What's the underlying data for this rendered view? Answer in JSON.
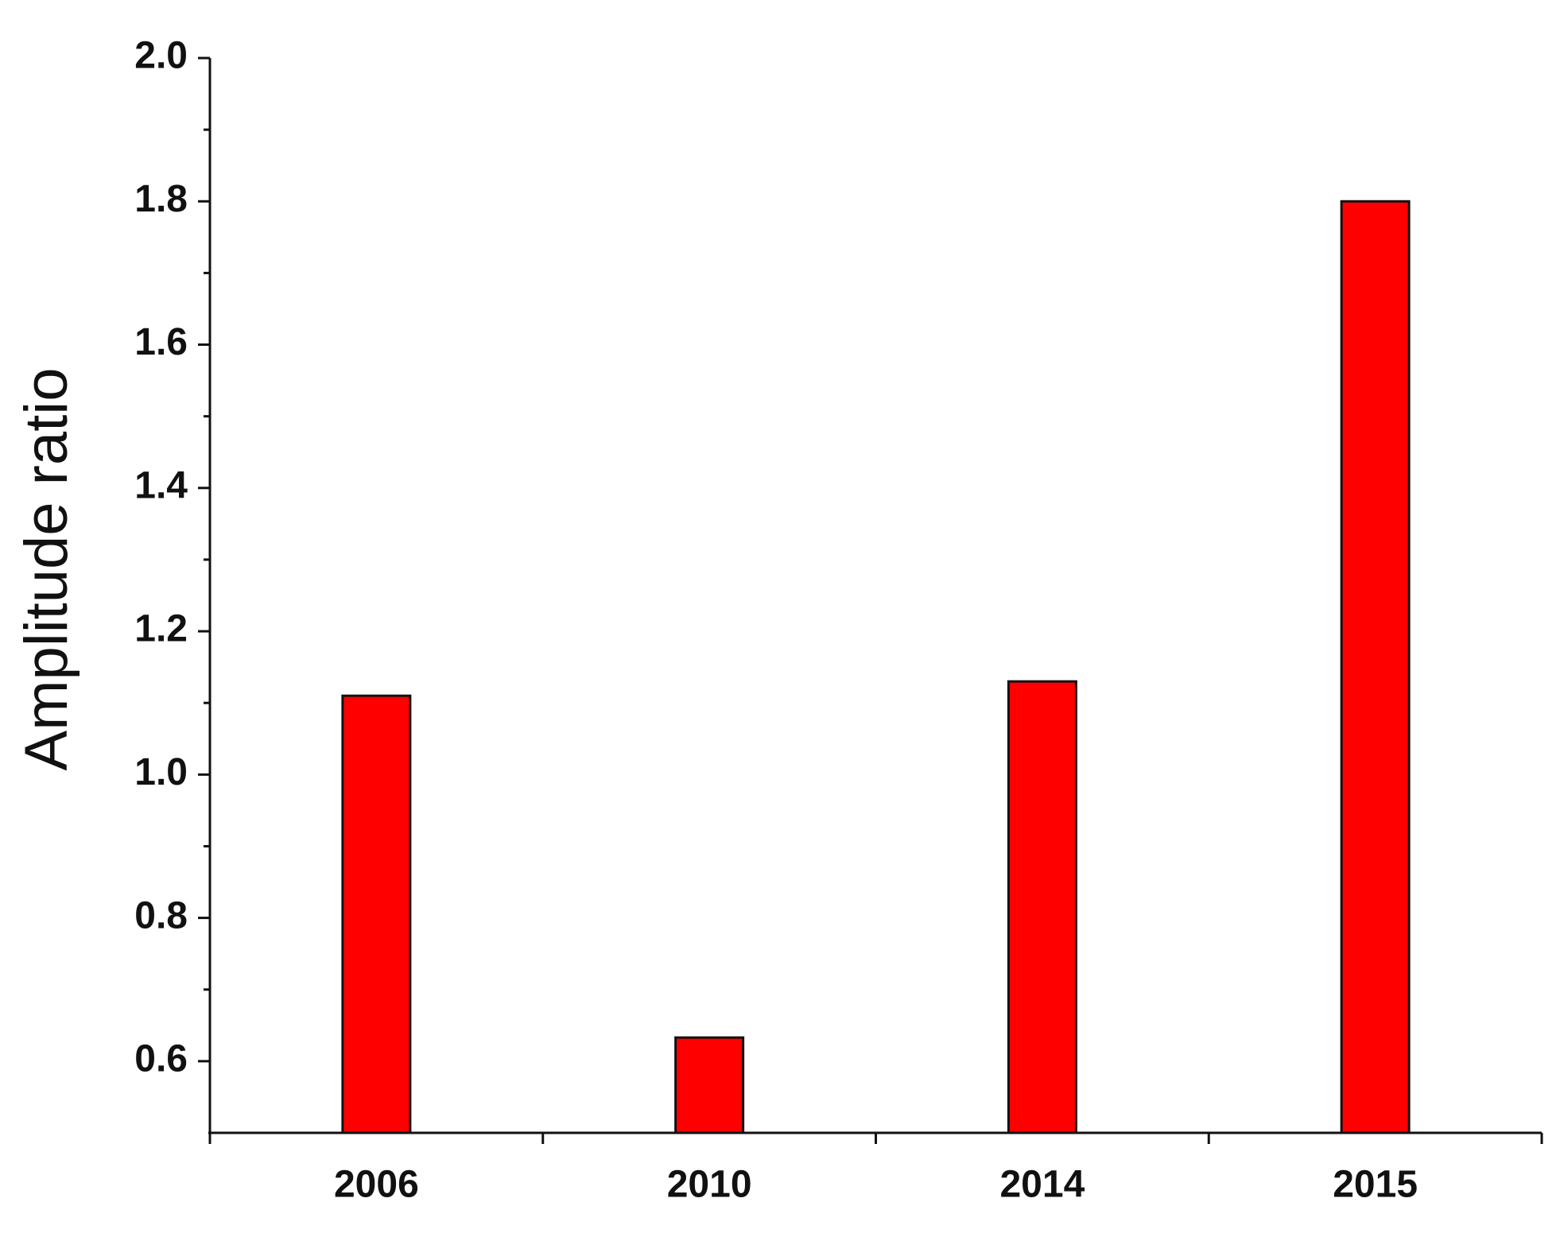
{
  "chart_data": {
    "type": "bar",
    "y_axis_label": "Amplitude ratio",
    "categories": [
      "2006",
      "2010",
      "2014",
      "2015"
    ],
    "values": [
      1.11,
      0.633,
      1.13,
      1.8
    ],
    "color": "#ff0000",
    "ylim": [
      0.5,
      2.0
    ],
    "yticks": [
      0.6,
      0.8,
      {
        "value": 1,
        "label": "1.0"
      },
      1.2,
      1.4,
      1.6,
      1.8,
      {
        "value": 2,
        "label": "2.0"
      }
    ],
    "yminorticks": [
      0.7,
      0.9,
      1.1,
      1.3,
      1.5,
      1.7,
      1.9
    ]
  }
}
